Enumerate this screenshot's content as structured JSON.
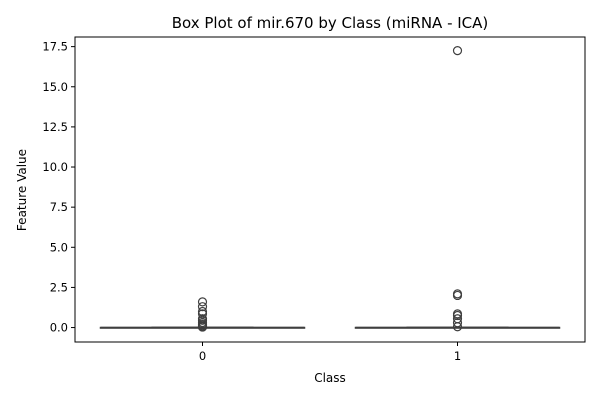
{
  "chart_data": {
    "type": "box",
    "title": "Box Plot of mir.670 by Class (miRNA - ICA)",
    "xlabel": "Class",
    "ylabel": "Feature Value",
    "categories": [
      "0",
      "1"
    ],
    "ylim": [
      -0.9,
      18.1
    ],
    "yticks": [
      0.0,
      2.5,
      5.0,
      7.5,
      10.0,
      12.5,
      15.0,
      17.5
    ],
    "ytick_labels": [
      "0.0",
      "2.5",
      "5.0",
      "7.5",
      "10.0",
      "12.5",
      "15.0",
      "17.5"
    ],
    "grid": false,
    "boxes": [
      {
        "category": "0",
        "whisker_low": 0.0,
        "q1": 0.0,
        "median": 0.0,
        "q3": 0.0,
        "whisker_high": 0.0,
        "outliers": [
          0.03,
          0.08,
          0.15,
          0.22,
          0.32,
          0.45,
          0.55,
          0.85,
          1.0,
          1.3,
          1.6
        ]
      },
      {
        "category": "1",
        "whisker_low": 0.0,
        "q1": 0.0,
        "median": 0.0,
        "q3": 0.0,
        "whisker_high": 0.0,
        "outliers": [
          0.05,
          0.3,
          0.55,
          0.75,
          0.85,
          2.0,
          2.1,
          17.25
        ]
      }
    ],
    "colors": {
      "box_line": "#3f3f3f",
      "axes": "#000000",
      "background": "#ffffff"
    }
  }
}
